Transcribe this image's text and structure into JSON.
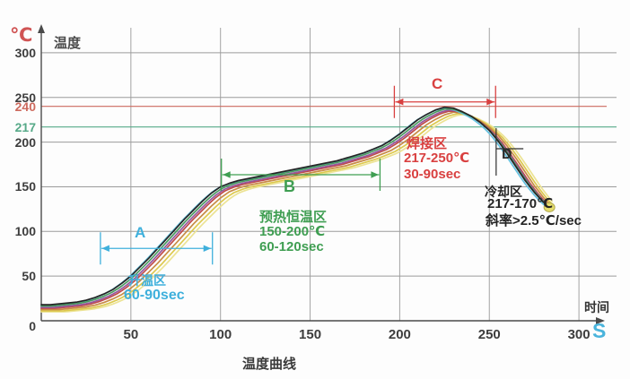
{
  "axes": {
    "y_unit": "℃",
    "y_unit_color": "#d05454",
    "y_name": "温度",
    "x_name": "时间",
    "x_unit": "S",
    "x_unit_color": "#4ab4dc"
  },
  "chart_data": {
    "type": "line",
    "title": "温度曲线",
    "xlabel": "时间 (S)",
    "ylabel": "温度 (℃)",
    "xlim": [
      0,
      300
    ],
    "ylim": [
      0,
      300
    ],
    "grid": true,
    "x_ticks": [
      50,
      100,
      150,
      200,
      250,
      300
    ],
    "y_ticks": [
      0,
      50,
      100,
      150,
      200,
      250,
      300
    ],
    "reference_lines": [
      {
        "value": 240,
        "color": "#cd6a5e"
      },
      {
        "value": 217,
        "color": "#56a988"
      }
    ],
    "base_profile": {
      "t": [
        0,
        5,
        10,
        15,
        20,
        25,
        30,
        35,
        40,
        45,
        50,
        55,
        60,
        65,
        70,
        75,
        80,
        85,
        90,
        95,
        100,
        105,
        110,
        115,
        120,
        125,
        130,
        135,
        140,
        145,
        150,
        155,
        160,
        165,
        170,
        175,
        180,
        185,
        190,
        195,
        200,
        205,
        210,
        215,
        220,
        225,
        230,
        235,
        240,
        245,
        250,
        255,
        260,
        265,
        270,
        275,
        280,
        285
      ],
      "temp": [
        16,
        16,
        17,
        18,
        19,
        21,
        24,
        28,
        33,
        40,
        48,
        58,
        68,
        79,
        90,
        101,
        112,
        122,
        132,
        141,
        148,
        152,
        155,
        157,
        159,
        161,
        163,
        165,
        167,
        169,
        171,
        173,
        175,
        177,
        180,
        183,
        186,
        190,
        194,
        200,
        207,
        215,
        223,
        229,
        234,
        237,
        236,
        232,
        227,
        220,
        211,
        199,
        185,
        170,
        155,
        142,
        131,
        124
      ]
    },
    "series": [
      {
        "name": "curve-black",
        "color": "#252525",
        "t_shift": 0,
        "temp_offset": 2
      },
      {
        "name": "curve-green",
        "color": "#4a9a62",
        "t_shift": 1,
        "temp_offset": 0.5
      },
      {
        "name": "curve-cyan",
        "color": "#66c2e0",
        "t_shift": -1,
        "temp_offset": 1
      },
      {
        "name": "curve-purple",
        "color": "#96589e",
        "t_shift": 2,
        "temp_offset": -1
      },
      {
        "name": "curve-red",
        "color": "#bf4a4a",
        "t_shift": 3,
        "temp_offset": -2
      },
      {
        "name": "curve-orange",
        "color": "#c88c46",
        "t_shift": 5,
        "temp_offset": -3.5
      },
      {
        "name": "curve-yellow",
        "color": "#ddc94e",
        "t_shift": 7,
        "temp_offset": -5
      },
      {
        "name": "curve-pale-yellow",
        "color": "#ece394",
        "t_shift": 9,
        "temp_offset": -6
      }
    ],
    "zones": [
      {
        "id": "A",
        "label": "A",
        "color": "#3fb0dc",
        "type": "dim",
        "t1": 33,
        "t2": 95.5,
        "temp": 81,
        "texts": [
          "升温区",
          "60-90sec"
        ]
      },
      {
        "id": "B",
        "label": "B",
        "color": "#3f9e52",
        "type": "dim",
        "t1": 100.5,
        "t2": 189,
        "temp": 163.5,
        "texts": [
          "预热恒温区",
          "150-200℃",
          "60-120sec"
        ]
      },
      {
        "id": "C",
        "label": "C",
        "color": "#d94040",
        "type": "dim",
        "t1": 197,
        "t2": 253.5,
        "temp": 245,
        "texts": [
          "焊接区",
          "217-250℃",
          "30-90sec"
        ]
      },
      {
        "id": "D",
        "label": "D",
        "color": "#2e2e2e",
        "type": "bracket",
        "t": 253.8,
        "temp_top": 215.6,
        "temp_bottom": 162.5,
        "tick_temp": 192.6,
        "tick_t2": 269,
        "texts": [
          "冷却区",
          "217-170℃",
          "斜率>2.5℃/sec"
        ]
      }
    ],
    "end_marker": {
      "t": 283.5,
      "temp": 127,
      "fill": "#e5dd6d",
      "stroke": "#b2aa4d"
    }
  }
}
